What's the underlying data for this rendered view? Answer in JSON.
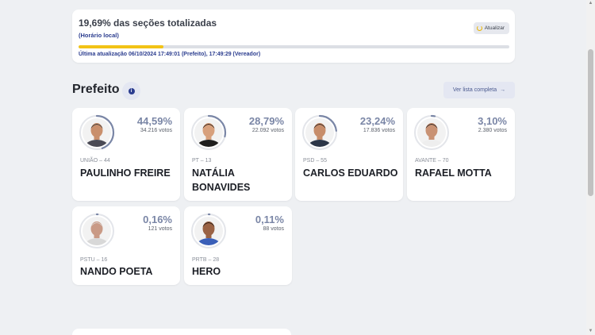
{
  "status": {
    "title": "19,69% das seções totalizadas",
    "subtitle": "(Horário local)",
    "update_label": "Atualizar",
    "progress_percent": 19.69,
    "last_update": "Última atualização 06/10/2024 17:49:01 (Prefeito), 17:49:29 (Vereador)"
  },
  "section": {
    "title": "Prefeito",
    "list_button": "Ver lista completa"
  },
  "candidates": [
    {
      "pct": "44,59%",
      "votes": "34.216 votos",
      "party": "UNIÃO – 44",
      "name": "PAULINHO FREIRE",
      "share": 0.4459,
      "skin": "#c98f6c",
      "hair": "#3b3b3b",
      "shirt": "#4a4a55"
    },
    {
      "pct": "28,79%",
      "votes": "22.092 votos",
      "party": "PT – 13",
      "name": "NATÁLIA BONAVIDES",
      "share": 0.2879,
      "skin": "#d7a07c",
      "hair": "#2a1b14",
      "shirt": "#1e1e1e"
    },
    {
      "pct": "23,24%",
      "votes": "17.836 votos",
      "party": "PSD – 55",
      "name": "CARLOS EDUARDO",
      "share": 0.2324,
      "skin": "#c78d6a",
      "hair": "#2d2420",
      "shirt": "#2c3648"
    },
    {
      "pct": "3,10%",
      "votes": "2.380 votos",
      "party": "AVANTE – 70",
      "name": "RAFAEL MOTTA",
      "share": 0.031,
      "skin": "#c99274",
      "hair": "#2b231f",
      "shirt": "#eeeeee"
    },
    {
      "pct": "0,16%",
      "votes": "121 votos",
      "party": "PSTU – 16",
      "name": "NANDO POETA",
      "share": 0.0016,
      "skin": "#c99a86",
      "hair": "#d9d3cf",
      "shirt": "#d8d8d8"
    },
    {
      "pct": "0,11%",
      "votes": "88 votos",
      "party": "PRTB – 28",
      "name": "HERO",
      "share": 0.0011,
      "skin": "#9a6244",
      "hair": "#2a1d16",
      "shirt": "#3a5fb8"
    }
  ],
  "colors": {
    "accent": "#2b3d8f",
    "progress": "#f2c316",
    "percent": "#7a86a6"
  }
}
